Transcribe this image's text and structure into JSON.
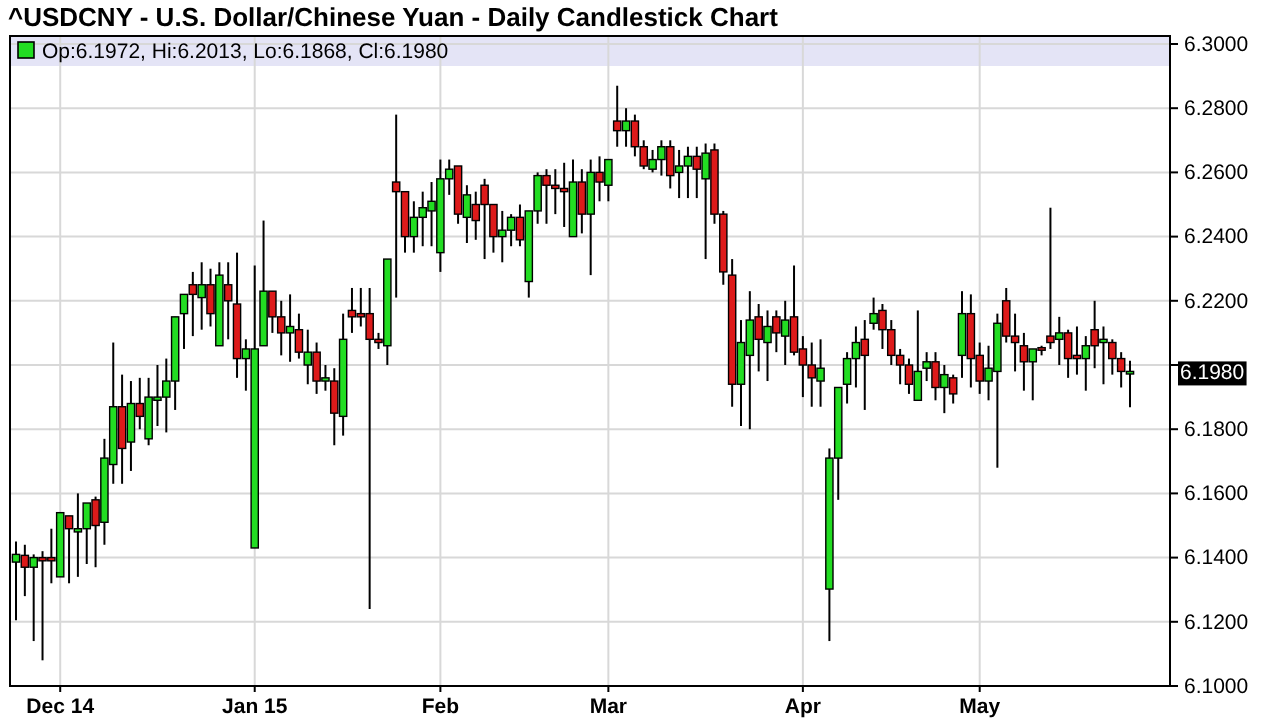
{
  "chart_data": {
    "type": "candlestick",
    "title": "^USDCNY - U.S. Dollar/Chinese Yuan - Daily Candlestick Chart",
    "annotations": [
      "Op:6.1972, Hi:6.2013, Lo:6.1868, Cl:6.1980",
      "6.1980"
    ],
    "categories": [
      null,
      null,
      null,
      null,
      null,
      "Dec 14",
      null,
      null,
      null,
      null,
      null,
      null,
      null,
      null,
      null,
      null,
      null,
      null,
      null,
      null,
      null,
      null,
      null,
      null,
      null,
      null,
      null,
      "Jan 15",
      null,
      null,
      null,
      null,
      null,
      null,
      null,
      null,
      null,
      null,
      null,
      null,
      null,
      null,
      null,
      null,
      null,
      null,
      null,
      null,
      "Feb",
      null,
      null,
      null,
      null,
      null,
      null,
      null,
      null,
      null,
      null,
      null,
      null,
      null,
      null,
      null,
      null,
      null,
      null,
      "Mar",
      null,
      null,
      null,
      null,
      null,
      null,
      null,
      null,
      null,
      null,
      null,
      null,
      null,
      null,
      null,
      null,
      null,
      null,
      null,
      null,
      null,
      "Apr",
      null,
      null,
      null,
      null,
      null,
      null,
      null,
      null,
      null,
      null,
      null,
      null,
      null,
      null,
      null,
      null,
      null,
      null,
      null,
      "May",
      null,
      null,
      null,
      null,
      null,
      null,
      null,
      null,
      null,
      null,
      null,
      null,
      null,
      null,
      null,
      null,
      null
    ],
    "ohlc": [
      [
        6.1386,
        6.145,
        6.1205,
        6.141
      ],
      [
        6.1407,
        6.144,
        6.128,
        6.137
      ],
      [
        6.137,
        6.141,
        6.114,
        6.14
      ],
      [
        6.14,
        6.142,
        6.108,
        6.139
      ],
      [
        6.14,
        6.149,
        6.132,
        6.139
      ],
      [
        6.134,
        6.154,
        6.134,
        6.154
      ],
      [
        6.153,
        6.153,
        6.132,
        6.149
      ],
      [
        6.148,
        6.16,
        6.134,
        6.149
      ],
      [
        6.149,
        6.157,
        6.138,
        6.157
      ],
      [
        6.158,
        6.159,
        6.137,
        6.15
      ],
      [
        6.151,
        6.177,
        6.144,
        6.171
      ],
      [
        6.169,
        6.207,
        6.163,
        6.187
      ],
      [
        6.187,
        6.197,
        6.163,
        6.174
      ],
      [
        6.176,
        6.195,
        6.167,
        6.188
      ],
      [
        6.188,
        6.196,
        6.18,
        6.184
      ],
      [
        6.177,
        6.196,
        6.175,
        6.19
      ],
      [
        6.189,
        6.2,
        6.181,
        6.19
      ],
      [
        6.19,
        6.202,
        6.179,
        6.195
      ],
      [
        6.195,
        6.215,
        6.186,
        6.215
      ],
      [
        6.216,
        6.222,
        6.205,
        6.222
      ],
      [
        6.225,
        6.229,
        6.209,
        6.222
      ],
      [
        6.221,
        6.232,
        6.211,
        6.225
      ],
      [
        6.225,
        6.23,
        6.212,
        6.216
      ],
      [
        6.206,
        6.232,
        6.206,
        6.228
      ],
      [
        6.225,
        6.232,
        6.208,
        6.22
      ],
      [
        6.219,
        6.235,
        6.196,
        6.202
      ],
      [
        6.202,
        6.208,
        6.192,
        6.205
      ],
      [
        6.143,
        6.231,
        6.143,
        6.205
      ],
      [
        6.206,
        6.245,
        6.206,
        6.223
      ],
      [
        6.223,
        6.223,
        6.21,
        6.215
      ],
      [
        6.215,
        6.22,
        6.203,
        6.21
      ],
      [
        6.21,
        6.222,
        6.201,
        6.212
      ],
      [
        6.211,
        6.216,
        6.202,
        6.204
      ],
      [
        6.2,
        6.211,
        6.194,
        6.204
      ],
      [
        6.204,
        6.207,
        6.191,
        6.195
      ],
      [
        6.195,
        6.2,
        6.192,
        6.196
      ],
      [
        6.195,
        6.199,
        6.175,
        6.185
      ],
      [
        6.184,
        6.216,
        6.178,
        6.208
      ],
      [
        6.217,
        6.224,
        6.21,
        6.215
      ],
      [
        6.216,
        6.224,
        6.212,
        6.215
      ],
      [
        6.216,
        6.224,
        6.124,
        6.208
      ],
      [
        6.208,
        6.21,
        6.205,
        6.207
      ],
      [
        6.206,
        6.233,
        6.2,
        6.233
      ],
      [
        6.257,
        6.278,
        6.221,
        6.254
      ],
      [
        6.254,
        6.254,
        6.235,
        6.24
      ],
      [
        6.24,
        6.251,
        6.235,
        6.246
      ],
      [
        6.246,
        6.254,
        6.237,
        6.249
      ],
      [
        6.248,
        6.257,
        6.237,
        6.251
      ],
      [
        6.235,
        6.264,
        6.229,
        6.258
      ],
      [
        6.258,
        6.264,
        6.253,
        6.261
      ],
      [
        6.262,
        6.262,
        6.244,
        6.247
      ],
      [
        6.246,
        6.256,
        6.238,
        6.253
      ],
      [
        6.25,
        6.254,
        6.239,
        6.245
      ],
      [
        6.256,
        6.258,
        6.233,
        6.25
      ],
      [
        6.25,
        6.25,
        6.235,
        6.24
      ],
      [
        6.24,
        6.248,
        6.232,
        6.242
      ],
      [
        6.242,
        6.247,
        6.237,
        6.246
      ],
      [
        6.246,
        6.25,
        6.237,
        6.239
      ],
      [
        6.226,
        6.248,
        6.221,
        6.248
      ],
      [
        6.248,
        6.26,
        6.244,
        6.259
      ],
      [
        6.259,
        6.261,
        6.244,
        6.256
      ],
      [
        6.256,
        6.261,
        6.247,
        6.255
      ],
      [
        6.255,
        6.263,
        6.243,
        6.254
      ],
      [
        6.24,
        6.264,
        6.24,
        6.257
      ],
      [
        6.257,
        6.261,
        6.241,
        6.247
      ],
      [
        6.247,
        6.264,
        6.228,
        6.26
      ],
      [
        6.26,
        6.265,
        6.251,
        6.257
      ],
      [
        6.256,
        6.264,
        6.251,
        6.264
      ],
      [
        6.276,
        6.287,
        6.268,
        6.273
      ],
      [
        6.273,
        6.28,
        6.268,
        6.276
      ],
      [
        6.276,
        6.278,
        6.265,
        6.268
      ],
      [
        6.268,
        6.27,
        6.261,
        6.262
      ],
      [
        6.261,
        6.267,
        6.26,
        6.264
      ],
      [
        6.264,
        6.27,
        6.259,
        6.268
      ],
      [
        6.268,
        6.27,
        6.255,
        6.259
      ],
      [
        6.26,
        6.267,
        6.252,
        6.262
      ],
      [
        6.262,
        6.268,
        6.252,
        6.265
      ],
      [
        6.265,
        6.268,
        6.252,
        6.261
      ],
      [
        6.258,
        6.269,
        6.233,
        6.266
      ],
      [
        6.267,
        6.269,
        6.244,
        6.247
      ],
      [
        6.247,
        6.248,
        6.225,
        6.229
      ],
      [
        6.228,
        6.233,
        6.187,
        6.194
      ],
      [
        6.194,
        6.214,
        6.181,
        6.207
      ],
      [
        6.203,
        6.223,
        6.18,
        6.214
      ],
      [
        6.215,
        6.219,
        6.198,
        6.208
      ],
      [
        6.207,
        6.217,
        6.195,
        6.212
      ],
      [
        6.215,
        6.217,
        6.204,
        6.21
      ],
      [
        6.209,
        6.22,
        6.2,
        6.214
      ],
      [
        6.215,
        6.231,
        6.203,
        6.204
      ],
      [
        6.205,
        6.209,
        6.19,
        6.2
      ],
      [
        6.2,
        6.207,
        6.187,
        6.196
      ],
      [
        6.195,
        6.208,
        6.187,
        6.199
      ],
      [
        6.1302,
        6.174,
        6.114,
        6.171
      ],
      [
        6.171,
        6.193,
        6.158,
        6.193
      ],
      [
        6.194,
        6.204,
        6.188,
        6.202
      ],
      [
        6.202,
        6.212,
        6.193,
        6.207
      ],
      [
        6.208,
        6.214,
        6.186,
        6.203
      ],
      [
        6.213,
        6.221,
        6.211,
        6.216
      ],
      [
        6.217,
        6.219,
        6.205,
        6.211
      ],
      [
        6.211,
        6.214,
        6.2,
        6.203
      ],
      [
        6.203,
        6.205,
        6.194,
        6.2
      ],
      [
        6.2,
        6.202,
        6.191,
        6.194
      ],
      [
        6.189,
        6.217,
        6.189,
        6.198
      ],
      [
        6.199,
        6.204,
        6.195,
        6.201
      ],
      [
        6.201,
        6.204,
        6.189,
        6.193
      ],
      [
        6.193,
        6.2,
        6.185,
        6.197
      ],
      [
        6.196,
        6.197,
        6.188,
        6.191
      ],
      [
        6.203,
        6.223,
        6.196,
        6.216
      ],
      [
        6.216,
        6.222,
        6.193,
        6.202
      ],
      [
        6.203,
        6.207,
        6.191,
        6.195
      ],
      [
        6.195,
        6.206,
        6.189,
        6.199
      ],
      [
        6.198,
        6.216,
        6.168,
        6.213
      ],
      [
        6.22,
        6.224,
        6.207,
        6.209
      ],
      [
        6.209,
        6.216,
        6.198,
        6.207
      ],
      [
        6.206,
        6.21,
        6.192,
        6.201
      ],
      [
        6.201,
        6.205,
        6.189,
        6.205
      ],
      [
        6.2054,
        6.206,
        6.203,
        6.2046
      ],
      [
        6.209,
        6.249,
        6.205,
        6.207
      ],
      [
        6.208,
        6.215,
        6.2,
        6.21
      ],
      [
        6.21,
        6.211,
        6.196,
        6.202
      ],
      [
        6.203,
        6.212,
        6.197,
        6.202
      ],
      [
        6.202,
        6.209,
        6.192,
        6.206
      ],
      [
        6.211,
        6.22,
        6.199,
        6.206
      ],
      [
        6.207,
        6.212,
        6.194,
        6.208
      ],
      [
        6.207,
        6.208,
        6.197,
        6.202
      ],
      [
        6.202,
        6.204,
        6.193,
        6.198
      ],
      [
        6.1972,
        6.2013,
        6.1868,
        6.198
      ]
    ],
    "ylim": [
      6.1,
      6.3
    ],
    "yticks": [
      {
        "value": 6.1,
        "label": "6.1000"
      },
      {
        "value": 6.12,
        "label": "6.1200"
      },
      {
        "value": 6.14,
        "label": "6.1400"
      },
      {
        "value": 6.16,
        "label": "6.1600"
      },
      {
        "value": 6.18,
        "label": "6.1800"
      },
      {
        "value": 6.2,
        "label": null
      },
      {
        "value": 6.22,
        "label": "6.2200"
      },
      {
        "value": 6.24,
        "label": "6.2400"
      },
      {
        "value": 6.26,
        "label": "6.2600"
      },
      {
        "value": 6.28,
        "label": "6.2800"
      },
      {
        "value": 6.3,
        "label": "6.3000"
      }
    ],
    "grid": true
  }
}
